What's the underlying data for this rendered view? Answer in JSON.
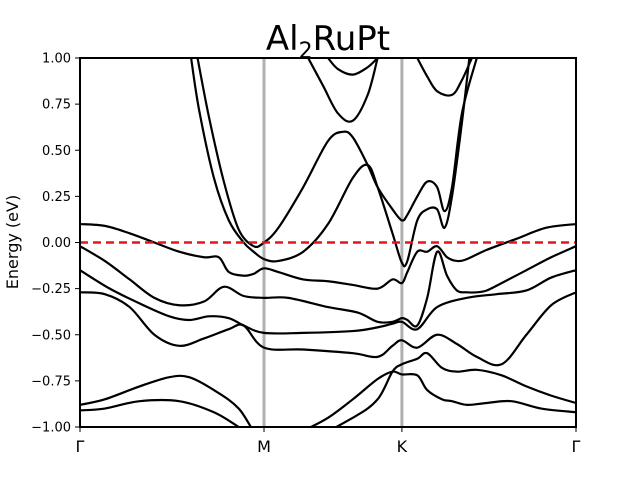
{
  "chart_data": {
    "type": "line",
    "title": {
      "base": "Al",
      "sub": "2",
      "rest": "RuPt"
    },
    "ylabel": "Energy (eV)",
    "xlabel": "",
    "xlim": [
      0,
      1
    ],
    "ylim": [
      -1.0,
      1.0
    ],
    "yticks": [
      -1.0,
      -0.75,
      -0.5,
      -0.25,
      0.0,
      0.25,
      0.5,
      0.75,
      1.0
    ],
    "ytick_labels": [
      "−1.00",
      "−0.75",
      "−0.50",
      "−0.25",
      "0.00",
      "0.25",
      "0.50",
      "0.75",
      "1.00"
    ],
    "kpoints": [
      {
        "label": "Γ",
        "x": 0.0
      },
      {
        "label": "M",
        "x": 0.371
      },
      {
        "label": "K",
        "x": 0.649
      },
      {
        "label": "Γ",
        "x": 1.0
      }
    ],
    "fermi_level": 0.0,
    "colors": {
      "bands": "#000000",
      "fermi": "#e8141b",
      "kline": "#b0b0b0"
    },
    "series": [
      {
        "x": [
          0.0,
          0.05,
          0.12,
          0.2,
          0.27,
          0.32,
          0.35,
          0.371,
          0.4,
          0.45,
          0.5,
          0.55,
          0.6,
          0.63,
          0.649,
          0.68,
          0.7,
          0.73,
          0.75,
          0.78,
          0.82,
          0.87,
          0.93,
          1.0
        ],
        "y": [
          -0.91,
          -0.9,
          -0.86,
          -0.86,
          -0.92,
          -1.0,
          -1.05,
          -1.08,
          -1.08,
          -1.02,
          -0.95,
          -0.85,
          -0.74,
          -0.7,
          -0.715,
          -0.72,
          -0.8,
          -0.85,
          -0.86,
          -0.88,
          -0.87,
          -0.86,
          -0.9,
          -0.92
        ]
      },
      {
        "x": [
          0.0,
          0.05,
          0.12,
          0.18,
          0.22,
          0.27,
          0.32,
          0.371,
          0.45,
          0.55,
          0.6,
          0.63,
          0.649,
          0.68,
          0.7,
          0.73,
          0.76,
          0.8,
          0.85,
          0.9,
          0.95,
          1.0
        ],
        "y": [
          -0.88,
          -0.85,
          -0.78,
          -0.73,
          -0.73,
          -0.8,
          -0.9,
          -1.08,
          -1.08,
          -0.95,
          -0.85,
          -0.7,
          -0.66,
          -0.63,
          -0.6,
          -0.68,
          -0.7,
          -0.69,
          -0.72,
          -0.78,
          -0.83,
          -0.87
        ]
      },
      {
        "x": [
          0.0,
          0.05,
          0.1,
          0.15,
          0.2,
          0.25,
          0.3,
          0.33,
          0.371,
          0.45,
          0.55,
          0.6,
          0.63,
          0.649,
          0.68,
          0.72,
          0.76,
          0.8,
          0.85,
          0.9,
          0.95,
          1.0
        ],
        "y": [
          -0.27,
          -0.28,
          -0.35,
          -0.5,
          -0.56,
          -0.52,
          -0.47,
          -0.45,
          -0.57,
          -0.58,
          -0.6,
          -0.62,
          -0.56,
          -0.53,
          -0.57,
          -0.5,
          -0.55,
          -0.62,
          -0.66,
          -0.5,
          -0.34,
          -0.27
        ]
      },
      {
        "x": [
          0.0,
          0.06,
          0.12,
          0.18,
          0.22,
          0.26,
          0.3,
          0.33,
          0.371,
          0.45,
          0.55,
          0.6,
          0.63,
          0.649,
          0.68,
          0.72,
          0.78,
          0.84,
          0.9,
          0.95,
          1.0
        ],
        "y": [
          -0.15,
          -0.25,
          -0.33,
          -0.4,
          -0.42,
          -0.4,
          -0.41,
          -0.45,
          -0.49,
          -0.49,
          -0.48,
          -0.46,
          -0.44,
          -0.43,
          -0.47,
          -0.35,
          -0.3,
          -0.28,
          -0.26,
          -0.19,
          -0.15
        ]
      },
      {
        "x": [
          0.0,
          0.05,
          0.1,
          0.15,
          0.2,
          0.25,
          0.29,
          0.33,
          0.371,
          0.42,
          0.5,
          0.56,
          0.6,
          0.63,
          0.649,
          0.66,
          0.68,
          0.7,
          0.72,
          0.74,
          0.76,
          0.78,
          0.8,
          0.82,
          0.85,
          0.9,
          0.95,
          1.0
        ],
        "y": [
          -0.02,
          -0.1,
          -0.2,
          -0.3,
          -0.34,
          -0.32,
          -0.24,
          -0.29,
          -0.3,
          -0.3,
          -0.35,
          -0.38,
          -0.43,
          -0.43,
          -0.41,
          -0.42,
          -0.45,
          -0.3,
          -0.05,
          -0.18,
          -0.26,
          -0.27,
          -0.27,
          -0.26,
          -0.22,
          -0.15,
          -0.08,
          -0.02
        ]
      },
      {
        "x": [
          0.0,
          0.05,
          0.1,
          0.15,
          0.2,
          0.25,
          0.28,
          0.3,
          0.33,
          0.35,
          0.371,
          0.4,
          0.45,
          0.5,
          0.55,
          0.6,
          0.63,
          0.649,
          0.66,
          0.68,
          0.7,
          0.72,
          0.74,
          0.76,
          0.78,
          0.82,
          0.88,
          0.94,
          1.0
        ],
        "y": [
          0.1,
          0.09,
          0.05,
          0.0,
          -0.05,
          -0.08,
          -0.08,
          -0.16,
          -0.18,
          -0.17,
          -0.14,
          -0.16,
          -0.2,
          -0.21,
          -0.23,
          -0.25,
          -0.2,
          -0.22,
          -0.16,
          -0.05,
          -0.05,
          -0.02,
          -0.08,
          -0.1,
          -0.09,
          -0.04,
          0.02,
          0.08,
          0.1
        ]
      },
      {
        "x": [
          0.224,
          0.24,
          0.27,
          0.3,
          0.33,
          0.35,
          0.371,
          0.4,
          0.45,
          0.5,
          0.55,
          0.58,
          0.6,
          0.63,
          0.649,
          0.66,
          0.68,
          0.7,
          0.72,
          0.735,
          0.75,
          0.77,
          0.785
        ],
        "y": [
          1.0,
          0.72,
          0.35,
          0.12,
          0.0,
          -0.05,
          -0.09,
          -0.1,
          -0.05,
          0.1,
          0.35,
          0.42,
          0.3,
          0.05,
          -0.11,
          -0.1,
          0.12,
          0.18,
          0.18,
          0.08,
          0.25,
          0.65,
          1.0
        ]
      },
      {
        "x": [
          0.237,
          0.26,
          0.29,
          0.32,
          0.35,
          0.371,
          0.4,
          0.45,
          0.5,
          0.53,
          0.55,
          0.58,
          0.6,
          0.63,
          0.649,
          0.66,
          0.68,
          0.7,
          0.72,
          0.735,
          0.75,
          0.77,
          0.8
        ],
        "y": [
          1.0,
          0.68,
          0.33,
          0.07,
          -0.02,
          0.0,
          0.08,
          0.3,
          0.55,
          0.6,
          0.57,
          0.42,
          0.3,
          0.18,
          0.12,
          0.15,
          0.25,
          0.33,
          0.3,
          0.17,
          0.3,
          0.7,
          1.0
        ]
      },
      {
        "x": [
          0.46,
          0.49,
          0.52,
          0.55,
          0.58,
          0.6
        ],
        "y": [
          1.0,
          0.85,
          0.7,
          0.66,
          0.8,
          1.0
        ]
      },
      {
        "x": [
          0.5,
          0.52,
          0.55,
          0.58,
          0.6
        ],
        "y": [
          1.0,
          0.94,
          0.91,
          0.95,
          1.0
        ]
      },
      {
        "x": [
          0.68,
          0.7,
          0.72,
          0.75,
          0.77,
          0.79
        ],
        "y": [
          1.0,
          0.9,
          0.82,
          0.8,
          0.88,
          1.0
        ]
      }
    ]
  }
}
